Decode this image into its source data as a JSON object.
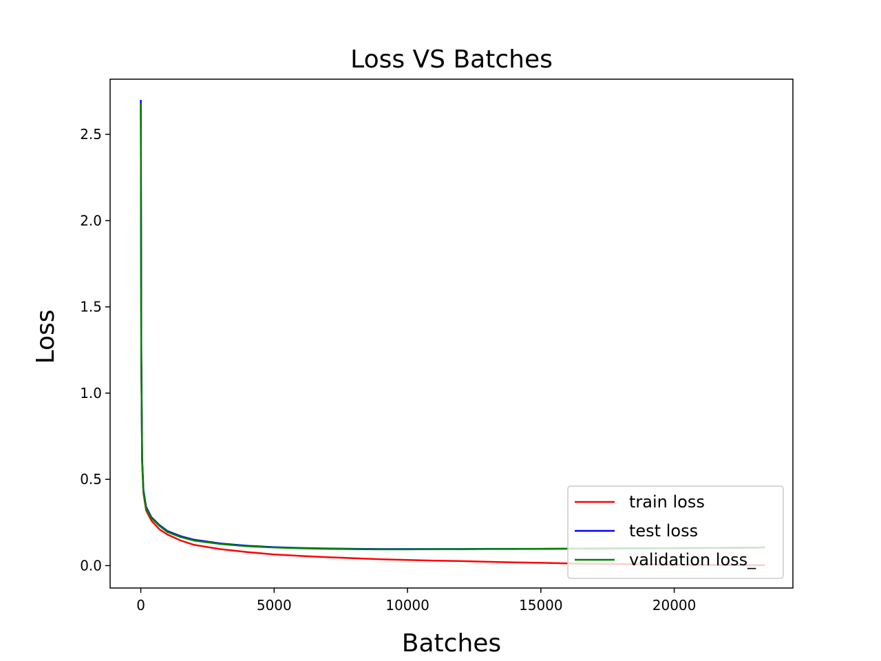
{
  "chart_data": {
    "type": "line",
    "title": "Loss VS Batches",
    "xlabel": "Batches",
    "ylabel": "Loss",
    "xlim": [
      -1150,
      24450
    ],
    "ylim": [
      -0.13,
      2.82
    ],
    "xticks": [
      0,
      5000,
      10000,
      15000,
      20000
    ],
    "xtick_labels": [
      "0",
      "5000",
      "10000",
      "15000",
      "20000"
    ],
    "yticks": [
      0.0,
      0.5,
      1.0,
      1.5,
      2.0,
      2.5
    ],
    "ytick_labels": [
      "0.0",
      "0.5",
      "1.0",
      "1.5",
      "2.0",
      "2.5"
    ],
    "grid": false,
    "legend_position": "bottom-right",
    "series": [
      {
        "name": "train loss",
        "color": "#ff0000",
        "x": [
          0,
          20,
          50,
          100,
          200,
          400,
          700,
          1000,
          1500,
          2000,
          3000,
          4000,
          5000,
          6000,
          7000,
          8000,
          9000,
          10000,
          11000,
          12000,
          13000,
          14000,
          15000,
          16000,
          17000,
          18000,
          19000,
          20000,
          21000,
          22000,
          23000,
          23400
        ],
        "values": [
          2.68,
          1.2,
          0.6,
          0.42,
          0.32,
          0.26,
          0.21,
          0.18,
          0.145,
          0.12,
          0.095,
          0.078,
          0.065,
          0.056,
          0.049,
          0.043,
          0.037,
          0.033,
          0.029,
          0.026,
          0.022,
          0.019,
          0.016,
          0.013,
          0.011,
          0.009,
          0.007,
          0.005,
          0.004,
          0.003,
          0.002,
          0.002
        ]
      },
      {
        "name": "test loss",
        "color": "#0000ff",
        "x": [
          0,
          20,
          50,
          100,
          200,
          400,
          700,
          1000,
          1500,
          2000,
          3000,
          4000,
          5000,
          6000,
          7000,
          8000,
          9000,
          10000,
          11000,
          12000,
          13000,
          14000,
          15000,
          16000,
          17000,
          18000,
          19000,
          20000,
          21000,
          22000,
          23000,
          23400
        ],
        "values": [
          2.7,
          1.22,
          0.62,
          0.44,
          0.34,
          0.28,
          0.235,
          0.2,
          0.17,
          0.15,
          0.128,
          0.115,
          0.107,
          0.102,
          0.099,
          0.097,
          0.096,
          0.096,
          0.096,
          0.096,
          0.097,
          0.097,
          0.097,
          0.098,
          0.099,
          0.1,
          0.1,
          0.101,
          0.102,
          0.103,
          0.104,
          0.105
        ]
      },
      {
        "name": "validation loss_",
        "color": "#008000",
        "x": [
          0,
          20,
          50,
          100,
          200,
          400,
          700,
          1000,
          1500,
          2000,
          3000,
          4000,
          5000,
          6000,
          7000,
          8000,
          9000,
          10000,
          11000,
          12000,
          13000,
          14000,
          15000,
          16000,
          17000,
          18000,
          19000,
          20000,
          21000,
          22000,
          23000,
          23400
        ],
        "values": [
          2.68,
          1.2,
          0.61,
          0.43,
          0.33,
          0.275,
          0.23,
          0.195,
          0.165,
          0.145,
          0.125,
          0.112,
          0.105,
          0.1,
          0.097,
          0.095,
          0.094,
          0.094,
          0.095,
          0.095,
          0.096,
          0.096,
          0.097,
          0.098,
          0.099,
          0.099,
          0.1,
          0.101,
          0.102,
          0.103,
          0.104,
          0.105
        ]
      }
    ]
  }
}
